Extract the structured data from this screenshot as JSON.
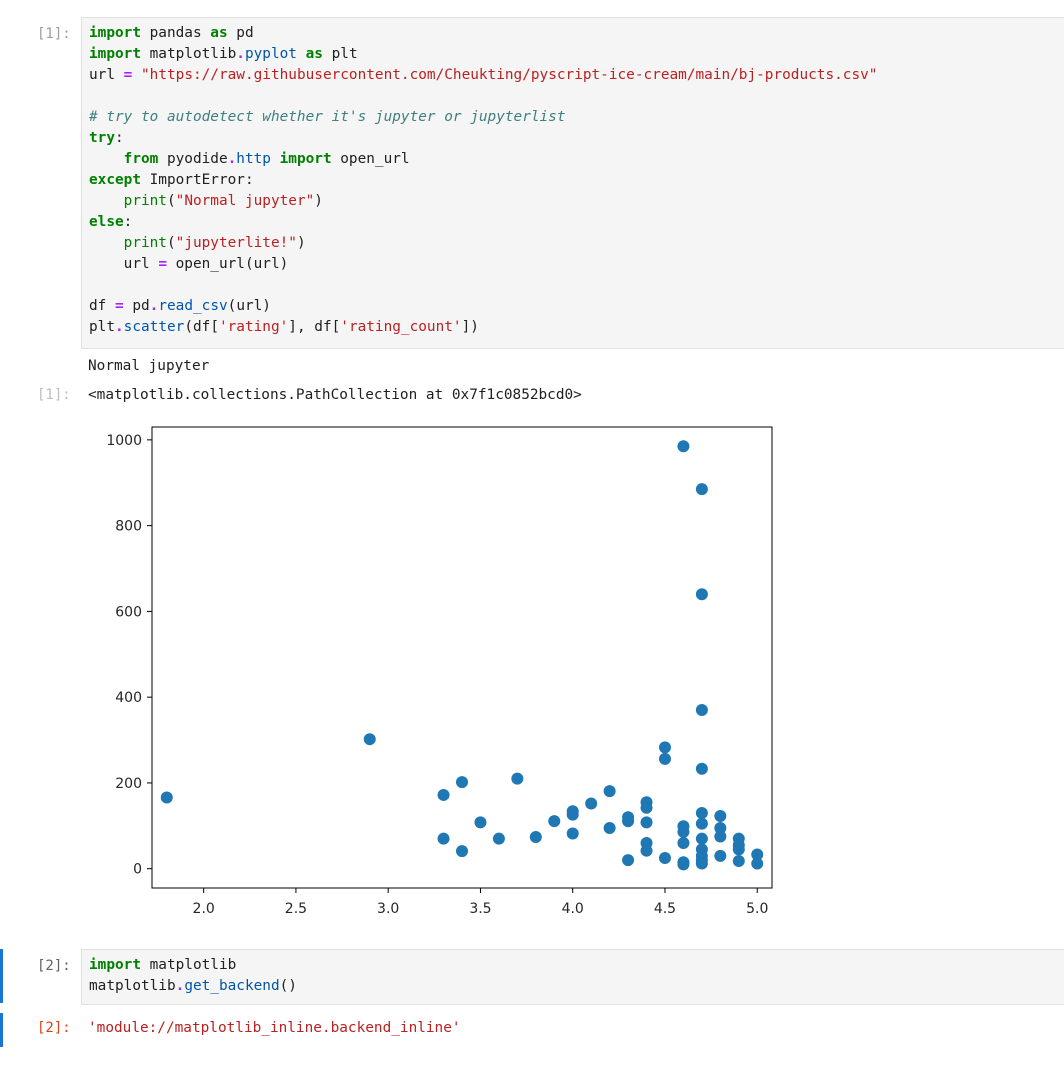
{
  "cells": {
    "cell1": {
      "in_prompt": "[1]:",
      "out_prompt": "[1]:",
      "stdout": "Normal jupyter",
      "result": "<matplotlib.collections.PathCollection at 0x7f1c0852bcd0>"
    },
    "cell2": {
      "in_prompt": "[2]:",
      "out_prompt": "[2]:",
      "result": "'module://matplotlib_inline.backend_inline'"
    }
  },
  "code1": {
    "l1_kw1": "import",
    "l1_t1": " pandas ",
    "l1_kw2": "as",
    "l1_t2": " pd",
    "l2_kw1": "import",
    "l2_t1": " matplotlib",
    "l2_op1": ".",
    "l2_attr1": "pyplot",
    "l2_t2": " ",
    "l2_kw2": "as",
    "l2_t3": " plt",
    "l3_t1": "url ",
    "l3_op1": "=",
    "l3_t2": " ",
    "l3_str1": "\"https://raw.githubusercontent.com/Cheukting/pyscript-ice-cream/main/bj-products.csv\"",
    "l5_cmt": "# try to autodetect whether it's jupyter or jupyterlist",
    "l6_kw1": "try",
    "l6_t1": ":",
    "l7_t0": "    ",
    "l7_kw1": "from",
    "l7_t1": " pyodide",
    "l7_op1": ".",
    "l7_attr1": "http",
    "l7_t2": " ",
    "l7_kw2": "import",
    "l7_t3": " open_url",
    "l8_kw1": "except",
    "l8_t1": " ImportError:",
    "l9_t0": "    ",
    "l9_b1": "print",
    "l9_t1": "(",
    "l9_str1": "\"Normal jupyter\"",
    "l9_t2": ")",
    "l10_kw1": "else",
    "l10_t1": ":",
    "l11_t0": "    ",
    "l11_b1": "print",
    "l11_t1": "(",
    "l11_str1": "\"jupyterlite!\"",
    "l11_t2": ")",
    "l12_t0": "    url ",
    "l12_op1": "=",
    "l12_t1": " open_url(url)",
    "l14_t1": "df ",
    "l14_op1": "=",
    "l14_t2": " pd",
    "l14_op2": ".",
    "l14_attr1": "read_csv",
    "l14_t3": "(url)",
    "l15_t1": "plt",
    "l15_op1": ".",
    "l15_attr1": "scatter",
    "l15_t2": "(df[",
    "l15_str1": "'rating'",
    "l15_t3": "], df[",
    "l15_str2": "'rating_count'",
    "l15_t4": "])"
  },
  "code2": {
    "l1_kw1": "import",
    "l1_t1": " matplotlib",
    "l2_t1": "matplotlib",
    "l2_op1": ".",
    "l2_attr1": "get_backend",
    "l2_t2": "()"
  },
  "chart_data": {
    "type": "scatter",
    "title": "",
    "xlabel": "",
    "ylabel": "",
    "xlim": [
      1.72,
      5.08
    ],
    "ylim": [
      -45,
      1030
    ],
    "grid": false,
    "marker_color": "#1f77b4",
    "x_ticks": [
      2.0,
      2.5,
      3.0,
      3.5,
      4.0,
      4.5,
      5.0
    ],
    "x_tick_labels": [
      "2.0",
      "2.5",
      "3.0",
      "3.5",
      "4.0",
      "4.5",
      "5.0"
    ],
    "y_ticks": [
      0,
      200,
      400,
      600,
      800,
      1000
    ],
    "y_tick_labels": [
      "0",
      "200",
      "400",
      "600",
      "800",
      "1000"
    ],
    "points": [
      {
        "x": 1.8,
        "y": 166
      },
      {
        "x": 2.9,
        "y": 302
      },
      {
        "x": 3.3,
        "y": 172
      },
      {
        "x": 3.3,
        "y": 70
      },
      {
        "x": 3.4,
        "y": 202
      },
      {
        "x": 3.4,
        "y": 41
      },
      {
        "x": 3.5,
        "y": 108
      },
      {
        "x": 3.6,
        "y": 70
      },
      {
        "x": 3.7,
        "y": 210
      },
      {
        "x": 3.8,
        "y": 74
      },
      {
        "x": 3.9,
        "y": 111
      },
      {
        "x": 4.0,
        "y": 134
      },
      {
        "x": 4.0,
        "y": 126
      },
      {
        "x": 4.0,
        "y": 82
      },
      {
        "x": 4.1,
        "y": 152
      },
      {
        "x": 4.2,
        "y": 181
      },
      {
        "x": 4.2,
        "y": 95
      },
      {
        "x": 4.3,
        "y": 120
      },
      {
        "x": 4.3,
        "y": 111
      },
      {
        "x": 4.3,
        "y": 20
      },
      {
        "x": 4.4,
        "y": 155
      },
      {
        "x": 4.4,
        "y": 142
      },
      {
        "x": 4.4,
        "y": 108
      },
      {
        "x": 4.4,
        "y": 60
      },
      {
        "x": 4.4,
        "y": 42
      },
      {
        "x": 4.5,
        "y": 283
      },
      {
        "x": 4.5,
        "y": 256
      },
      {
        "x": 4.5,
        "y": 25
      },
      {
        "x": 4.6,
        "y": 985
      },
      {
        "x": 4.6,
        "y": 99
      },
      {
        "x": 4.6,
        "y": 86
      },
      {
        "x": 4.6,
        "y": 60
      },
      {
        "x": 4.6,
        "y": 15
      },
      {
        "x": 4.6,
        "y": 10
      },
      {
        "x": 4.7,
        "y": 885
      },
      {
        "x": 4.7,
        "y": 640
      },
      {
        "x": 4.7,
        "y": 370
      },
      {
        "x": 4.7,
        "y": 233
      },
      {
        "x": 4.7,
        "y": 130
      },
      {
        "x": 4.7,
        "y": 105
      },
      {
        "x": 4.7,
        "y": 70
      },
      {
        "x": 4.7,
        "y": 45
      },
      {
        "x": 4.7,
        "y": 30
      },
      {
        "x": 4.7,
        "y": 20
      },
      {
        "x": 4.7,
        "y": 12
      },
      {
        "x": 4.8,
        "y": 123
      },
      {
        "x": 4.8,
        "y": 95
      },
      {
        "x": 4.8,
        "y": 75
      },
      {
        "x": 4.8,
        "y": 30
      },
      {
        "x": 4.9,
        "y": 70
      },
      {
        "x": 4.9,
        "y": 55
      },
      {
        "x": 4.9,
        "y": 45
      },
      {
        "x": 4.9,
        "y": 18
      },
      {
        "x": 5.0,
        "y": 33
      },
      {
        "x": 5.0,
        "y": 12
      }
    ]
  }
}
